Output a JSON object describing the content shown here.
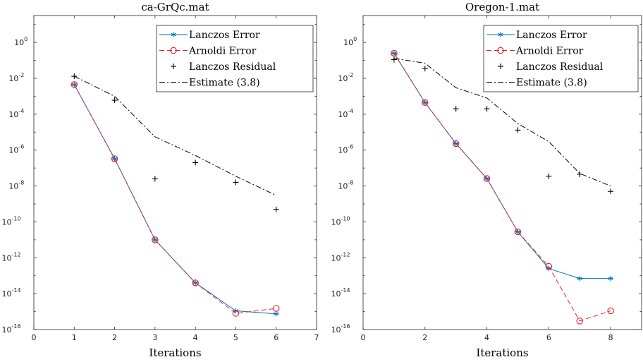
{
  "chart_data": [
    {
      "type": "line",
      "title": "ca-GrQc.mat",
      "xlabel": "Iterations",
      "ylabel": "",
      "xlim": [
        0,
        7
      ],
      "xticks": [
        0,
        1,
        2,
        3,
        4,
        5,
        6,
        7
      ],
      "ylim_exp": [
        -16,
        1.5
      ],
      "y_scale": "log",
      "ytick_exponents": [
        0,
        -2,
        -4,
        -6,
        -8,
        -10,
        -12,
        -14,
        -16
      ],
      "legend": "top-right",
      "series": [
        {
          "name": "Lanczos Error",
          "color": "#0072BD",
          "marker": "*",
          "dash": "solid",
          "x": [
            1,
            2,
            3,
            4,
            5,
            6
          ],
          "y": [
            0.0045,
            3.3e-07,
            1e-11,
            4e-14,
            1.1e-15,
            7.5e-16
          ]
        },
        {
          "name": "Arnoldi Error",
          "color": "#E8212B",
          "marker": "o",
          "dash": "dashed",
          "x": [
            1,
            2,
            3,
            4,
            5,
            6
          ],
          "y": [
            0.0045,
            3.3e-07,
            1e-11,
            4e-14,
            8e-16,
            1.5e-15
          ]
        },
        {
          "name": "Lanczos Residual",
          "color": "#000000",
          "marker": "+",
          "dash": "none",
          "x": [
            1,
            2,
            3,
            4,
            5,
            6
          ],
          "y": [
            0.013,
            0.0006,
            2.5e-08,
            2e-07,
            1.6e-08,
            5e-10
          ]
        },
        {
          "name": "Estimate (3.8)",
          "color": "#000000",
          "marker": "none",
          "dash": "dashdot",
          "x": [
            1,
            2,
            3,
            4,
            5,
            6
          ],
          "y": [
            0.013,
            0.001,
            5.5e-06,
            5e-07,
            3.5e-08,
            3e-09
          ]
        }
      ]
    },
    {
      "type": "line",
      "title": "Oregon-1.mat",
      "xlabel": "Iterations",
      "ylabel": "",
      "xlim": [
        0,
        9
      ],
      "xticks": [
        0,
        2,
        4,
        6,
        8
      ],
      "ylim_exp": [
        -16,
        1.5
      ],
      "y_scale": "log",
      "ytick_exponents": [
        0,
        -2,
        -4,
        -6,
        -8,
        -10,
        -12,
        -14,
        -16
      ],
      "legend": "top-right",
      "series": [
        {
          "name": "Lanczos Error",
          "color": "#0072BD",
          "marker": "*",
          "dash": "solid",
          "x": [
            1,
            2,
            3,
            4,
            5,
            6,
            7,
            8
          ],
          "y": [
            0.25,
            0.00045,
            2.3e-06,
            2.6e-08,
            2.8e-11,
            2.5e-13,
            7e-14,
            7e-14
          ]
        },
        {
          "name": "Arnoldi Error",
          "color": "#E8212B",
          "marker": "o",
          "dash": "dashed",
          "x": [
            1,
            2,
            3,
            4,
            5,
            6,
            7,
            8
          ],
          "y": [
            0.25,
            0.00045,
            2.3e-06,
            2.6e-08,
            2.8e-11,
            3.3e-13,
            3e-16,
            1.1e-15
          ]
        },
        {
          "name": "Lanczos Residual",
          "color": "#000000",
          "marker": "+",
          "dash": "none",
          "x": [
            1,
            2,
            3,
            4,
            5,
            6,
            7,
            8
          ],
          "y": [
            0.11,
            0.035,
            0.0002,
            0.0002,
            1.3e-05,
            3.5e-08,
            4.5e-08,
            5e-09
          ]
        },
        {
          "name": "Estimate (3.8)",
          "color": "#000000",
          "marker": "none",
          "dash": "dashdot",
          "x": [
            1,
            2,
            3,
            4,
            5,
            6,
            7,
            8
          ],
          "y": [
            0.13,
            0.07,
            0.003,
            0.0008,
            3e-05,
            3e-06,
            5e-08,
            1e-08
          ]
        }
      ]
    }
  ]
}
